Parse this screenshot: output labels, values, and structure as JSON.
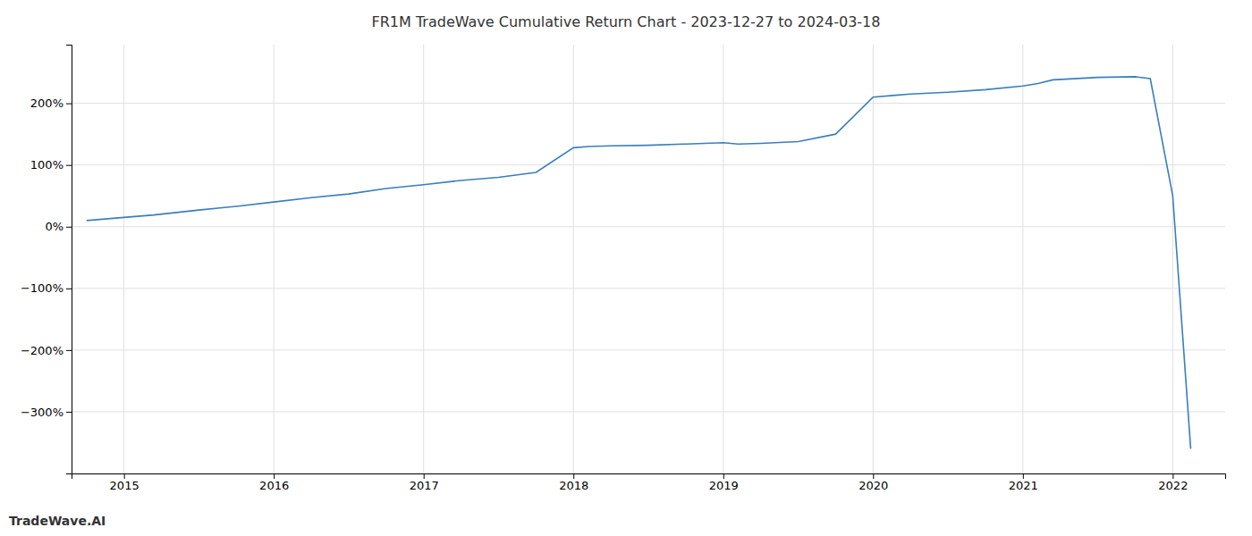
{
  "chart_data": {
    "type": "line",
    "title": "FR1M TradeWave Cumulative Return Chart - 2023-12-27 to 2024-03-18",
    "annotations": [
      "TradeWave.AI"
    ],
    "x": [
      2014.75,
      2015.0,
      2015.2,
      2015.5,
      2015.75,
      2016.0,
      2016.25,
      2016.5,
      2016.75,
      2017.0,
      2017.25,
      2017.5,
      2017.75,
      2018.0,
      2018.1,
      2018.25,
      2018.5,
      2018.75,
      2019.0,
      2019.1,
      2019.25,
      2019.5,
      2019.75,
      2020.0,
      2020.15,
      2020.25,
      2020.5,
      2020.75,
      2021.0,
      2021.1,
      2021.2,
      2021.5,
      2021.75,
      2021.85,
      2022.0,
      2022.12
    ],
    "values": [
      10,
      15,
      19,
      27,
      33,
      40,
      47,
      53,
      62,
      68,
      75,
      80,
      88,
      128,
      130,
      131,
      132,
      134,
      136,
      134,
      135,
      138,
      150,
      210,
      213,
      215,
      218,
      222,
      228,
      232,
      238,
      242,
      243,
      240,
      50,
      -360
    ],
    "color": "#3a7ebf",
    "xlim": [
      2014.65,
      2022.35
    ],
    "xticks": [
      2015,
      2016,
      2017,
      2018,
      2019,
      2020,
      2021,
      2022
    ],
    "ylim": [
      -400,
      295
    ],
    "yticks": [
      {
        "value": -300,
        "label": "−300%"
      },
      {
        "value": -200,
        "label": "−200%"
      },
      {
        "value": -100,
        "label": "−100%"
      },
      {
        "value": 0,
        "label": "0%"
      },
      {
        "value": 100,
        "label": "100%"
      },
      {
        "value": 200,
        "label": "200%"
      }
    ],
    "grid": true
  }
}
